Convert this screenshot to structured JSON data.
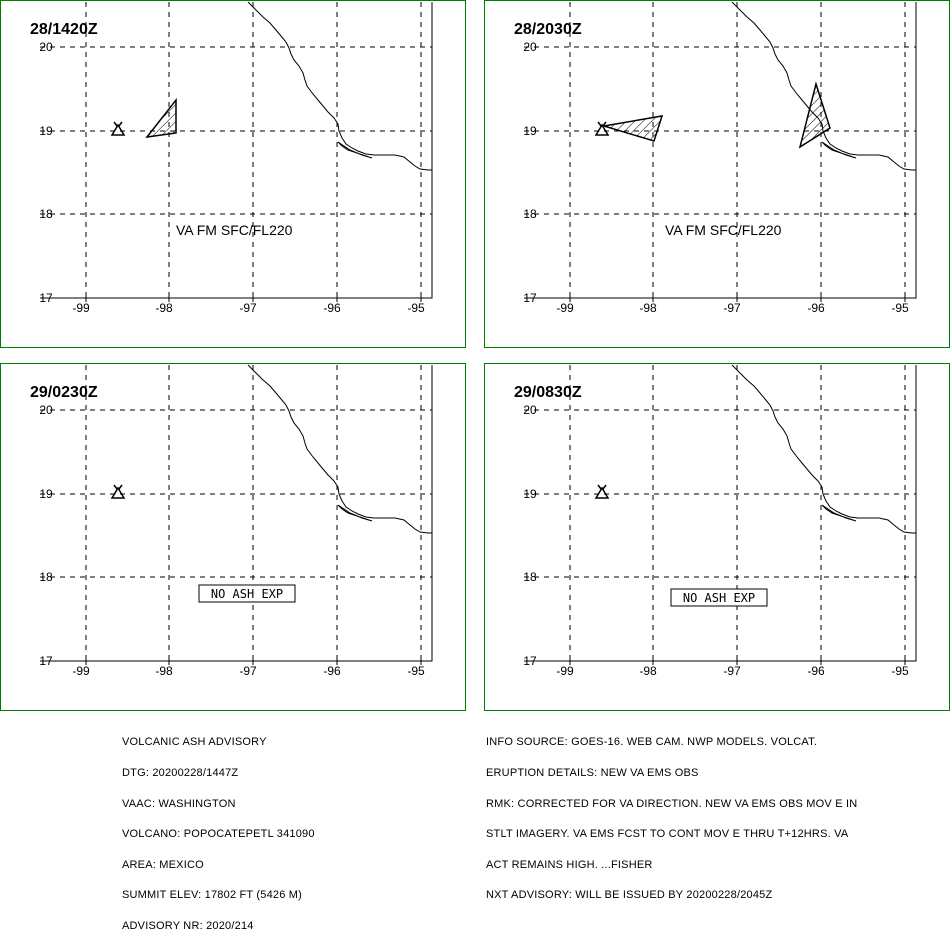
{
  "axes": {
    "lat_ticks": [
      "20",
      "19",
      "18",
      "17"
    ],
    "lon_ticks": [
      "-99",
      "-98",
      "-97",
      "-96",
      "-95"
    ]
  },
  "panels": [
    {
      "time_label": "28/1420Z",
      "level_label": "VA FM SFC/FL220",
      "box_label": ""
    },
    {
      "time_label": "28/2030Z",
      "level_label": "VA FM SFC/FL220",
      "box_label": ""
    },
    {
      "time_label": "29/0230Z",
      "level_label": "",
      "box_label": "NO ASH EXP"
    },
    {
      "time_label": "29/0830Z",
      "level_label": "",
      "box_label": "NO ASH EXP"
    }
  ],
  "advisory_left": [
    "VOLCANIC ASH ADVISORY",
    "DTG: 20200228/1447Z",
    "VAAC: WASHINGTON",
    "VOLCANO: POPOCATEPETL 341090",
    "AREA: MEXICO",
    "SUMMIT ELEV: 17802 FT (5426 M)",
    "ADVISORY NR: 2020/214"
  ],
  "advisory_right": [
    "INFO SOURCE: GOES-16. WEB CAM. NWP MODELS. VOLCAT.",
    "ERUPTION DETAILS: NEW VA EMS OBS",
    "RMK: CORRECTED FOR VA DIRECTION. NEW VA EMS OBS MOV E IN",
    "STLT IMAGERY. VA EMS FCST TO CONT MOV E THRU T+12HRS. VA",
    "ACT REMAINS HIGH. ...FISHER",
    "NXT ADVISORY: WILL BE ISSUED BY 20200228/2045Z"
  ]
}
